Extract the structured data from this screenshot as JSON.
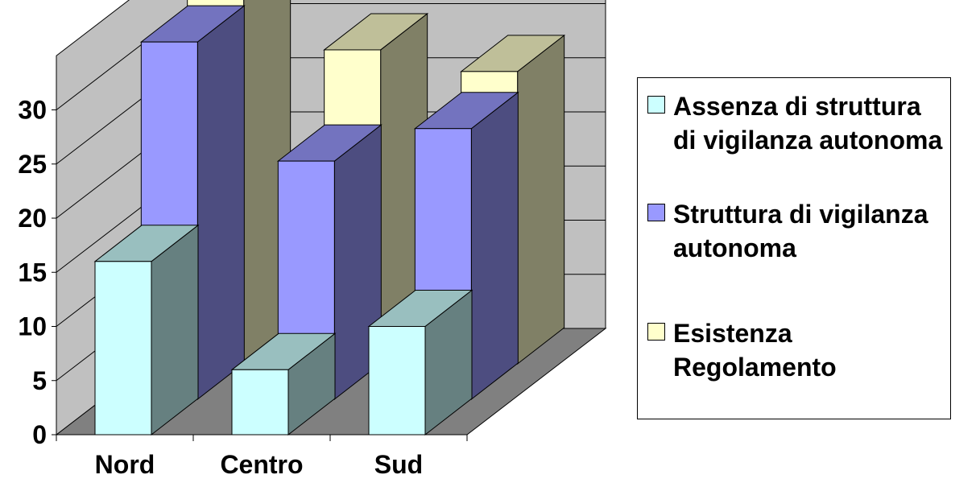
{
  "chart_data": {
    "type": "bar",
    "categories": [
      "Nord",
      "Centro",
      "Sud"
    ],
    "series": [
      {
        "name": "Assenza di struttura di vigilanza autonoma",
        "values": [
          16,
          6,
          10
        ],
        "color": "#CCFFFF"
      },
      {
        "name": "Struttura di vigilanza autonoma",
        "values": [
          33,
          22,
          25
        ],
        "color": "#9999FF"
      },
      {
        "name": "Esistenza Regolamento",
        "values": [
          36,
          29,
          27
        ],
        "color": "#FFFFCC"
      }
    ],
    "yticks": [
      "0",
      "5",
      "10",
      "15",
      "20",
      "25",
      "30"
    ],
    "ylim": [
      0,
      35
    ],
    "grid": true,
    "legend_position": "right",
    "title": "",
    "xlabel": "",
    "ylabel": ""
  },
  "legend": {
    "items": [
      {
        "label": "Assenza di struttura di vigilanza autonoma",
        "color": "#CCFFFF"
      },
      {
        "label": "Struttura di vigilanza autonoma",
        "color": "#9999FF"
      },
      {
        "label": "Esistenza Regolamento",
        "color": "#FFFFCC"
      }
    ]
  }
}
